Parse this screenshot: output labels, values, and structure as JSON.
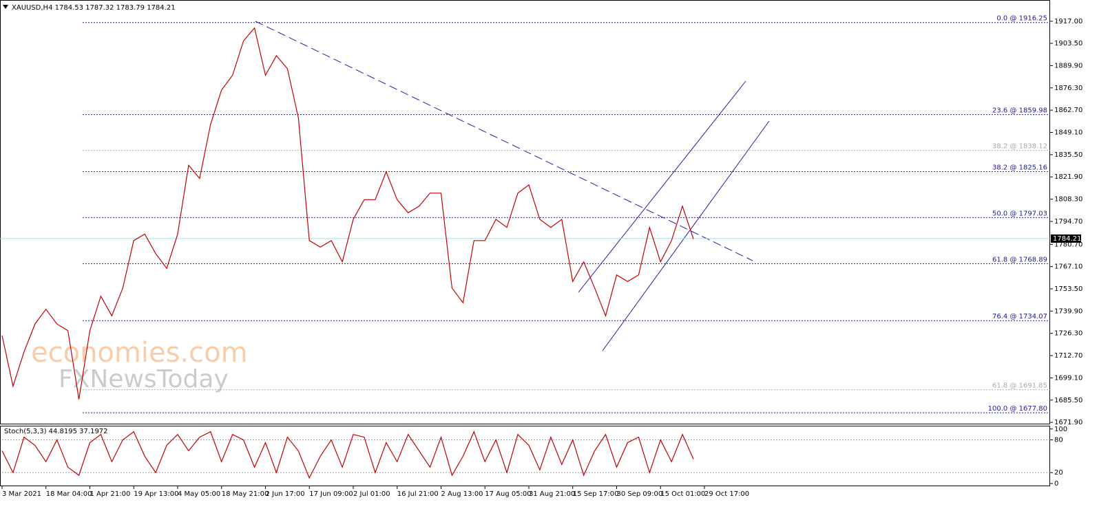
{
  "header": "XAUUSD,H4  1784.53 1787.32 1783.79 1784.21",
  "watermark": [
    "economies.com",
    "FXNewsToday"
  ],
  "chart_data": [
    {
      "type": "line",
      "color": "#c00000",
      "x": [
        0,
        2,
        4,
        6,
        8,
        10,
        12,
        14,
        16,
        18,
        20,
        22,
        24,
        26,
        28,
        30,
        32,
        34,
        36,
        38,
        40,
        42,
        44,
        46,
        48,
        50,
        52,
        54,
        56,
        58,
        60,
        62,
        64,
        66,
        68,
        70,
        72,
        74,
        76,
        78,
        80,
        82,
        84,
        86,
        88,
        90,
        92,
        94,
        96,
        98,
        100,
        102,
        104,
        106,
        108,
        110,
        112,
        114,
        116,
        118,
        120,
        122,
        124,
        126
      ],
      "values": [
        1725,
        1694,
        1715,
        1732,
        1741,
        1732,
        1728,
        1686,
        1728,
        1749,
        1737,
        1754,
        1783,
        1787,
        1775,
        1766,
        1787,
        1829,
        1821,
        1854,
        1875,
        1884,
        1905,
        1913,
        1884,
        1896,
        1888,
        1858,
        1783,
        1779,
        1783,
        1770,
        1796,
        1808,
        1808,
        1825,
        1808,
        1800,
        1804,
        1812,
        1812,
        1754,
        1745,
        1783,
        1783,
        1796,
        1791,
        1812,
        1817,
        1796,
        1791,
        1796,
        1758,
        1770,
        1754,
        1737,
        1762,
        1758,
        1762,
        1791,
        1770,
        1783,
        1804,
        1784
      ],
      "xlim": [
        0,
        191
      ],
      "ylim": [
        1670.7,
        1930.0
      ],
      "xticks": [
        {
          "value": 0,
          "label": "3 Mar 2021"
        },
        {
          "value": 8,
          "label": "18 Mar 04:00"
        },
        {
          "value": 16,
          "label": "1 Apr 21:00"
        },
        {
          "value": 24,
          "label": "19 Apr 13:00"
        },
        {
          "value": 32,
          "label": "4 May 05:00"
        },
        {
          "value": 40,
          "label": "18 May 21:00"
        },
        {
          "value": 48,
          "label": "2 Jun 17:00"
        },
        {
          "value": 56,
          "label": "17 Jun 09:00"
        },
        {
          "value": 64,
          "label": "2 Jul 01:00"
        },
        {
          "value": 72,
          "label": "16 Jul 21:00"
        },
        {
          "value": 80,
          "label": "2 Aug 13:00"
        },
        {
          "value": 88,
          "label": "17 Aug 05:00"
        },
        {
          "value": 96,
          "label": "31 Aug 21:00"
        },
        {
          "value": 104,
          "label": "15 Sep 17:00"
        },
        {
          "value": 112,
          "label": "30 Sep 09:00"
        },
        {
          "value": 120,
          "label": "15 Oct 01:00"
        },
        {
          "value": 128,
          "label": "29 Oct 17:00"
        }
      ],
      "yticks": [
        {
          "value": 1917,
          "label": "1917.00"
        },
        {
          "value": 1903.5,
          "label": "1903.50"
        },
        {
          "value": 1889.9,
          "label": "1889.90"
        },
        {
          "value": 1876.3,
          "label": "1876.30"
        },
        {
          "value": 1862.7,
          "label": "1862.70"
        },
        {
          "value": 1849.1,
          "label": "1849.10"
        },
        {
          "value": 1835.5,
          "label": "1835.50"
        },
        {
          "value": 1821.9,
          "label": "1821.90"
        },
        {
          "value": 1808.3,
          "label": "1808.30"
        },
        {
          "value": 1794.7,
          "label": "1794.70"
        },
        {
          "value": 1780.7,
          "label": "1780.70"
        },
        {
          "value": 1767.1,
          "label": "1767.10"
        },
        {
          "value": 1753.5,
          "label": "1753.50"
        },
        {
          "value": 1739.9,
          "label": "1739.90"
        },
        {
          "value": 1726.3,
          "label": "1726.30"
        },
        {
          "value": 1712.7,
          "label": "1712.70"
        },
        {
          "value": 1699.1,
          "label": "1699.10"
        },
        {
          "value": 1685.5,
          "label": "1685.50"
        },
        {
          "value": 1671.9,
          "label": "1671.90"
        }
      ],
      "last_price": 1784.21,
      "levels": [
        {
          "value": 1916.25,
          "label": "0.0 @ 1916.25",
          "color": "#1c1c8c"
        },
        {
          "value": 1859.98,
          "label": "23.6 @ 1859.98",
          "color": "#1c1c8c"
        },
        {
          "value": 1838.12,
          "label": "38.2 @ 1838.12",
          "color": "#a9a9a9"
        },
        {
          "value": 1825.16,
          "label": "38.2 @ 1825.16",
          "color": "#1c1c8c"
        },
        {
          "value": 1797.03,
          "label": "50.0 @ 1797.03",
          "color": "#1c1c8c"
        },
        {
          "value": 1768.89,
          "label": "61.8 @ 1768.89",
          "color": "#1c1c8c"
        },
        {
          "value": 1734.07,
          "label": "76.4 @ 1734.07",
          "color": "#1c1c8c"
        },
        {
          "value": 1691.85,
          "label": "61.8 @ 1691.85",
          "color": "#a9a9a9"
        },
        {
          "value": 1677.8,
          "label": "100.0 @ 1677.80",
          "color": "#1c1c8c"
        }
      ]
    },
    {
      "type": "line",
      "title": "Stoch(5,3,3) 44.8195 37.1972",
      "color": "#c00000",
      "x": [
        0,
        2,
        4,
        6,
        8,
        10,
        12,
        14,
        16,
        18,
        20,
        22,
        24,
        26,
        28,
        30,
        32,
        34,
        36,
        38,
        40,
        42,
        44,
        46,
        48,
        50,
        52,
        54,
        56,
        58,
        60,
        62,
        64,
        66,
        68,
        70,
        72,
        74,
        76,
        78,
        80,
        82,
        84,
        86,
        88,
        90,
        92,
        94,
        96,
        98,
        100,
        102,
        104,
        106,
        108,
        110,
        112,
        114,
        116,
        118,
        120,
        122,
        124,
        126
      ],
      "values": [
        60,
        20,
        85,
        70,
        40,
        80,
        30,
        15,
        75,
        90,
        40,
        80,
        95,
        50,
        20,
        70,
        90,
        60,
        85,
        95,
        40,
        90,
        80,
        30,
        75,
        20,
        85,
        60,
        10,
        50,
        80,
        30,
        90,
        85,
        20,
        75,
        40,
        90,
        60,
        30,
        85,
        15,
        50,
        95,
        40,
        80,
        20,
        90,
        70,
        25,
        85,
        35,
        80,
        15,
        60,
        90,
        30,
        75,
        85,
        20,
        80,
        40,
        90,
        44.8
      ],
      "xlim": [
        0,
        191
      ],
      "ylim": [
        -5,
        106
      ],
      "yticks": [
        0,
        20,
        80,
        100
      ],
      "levels": [
        20,
        80
      ]
    }
  ]
}
